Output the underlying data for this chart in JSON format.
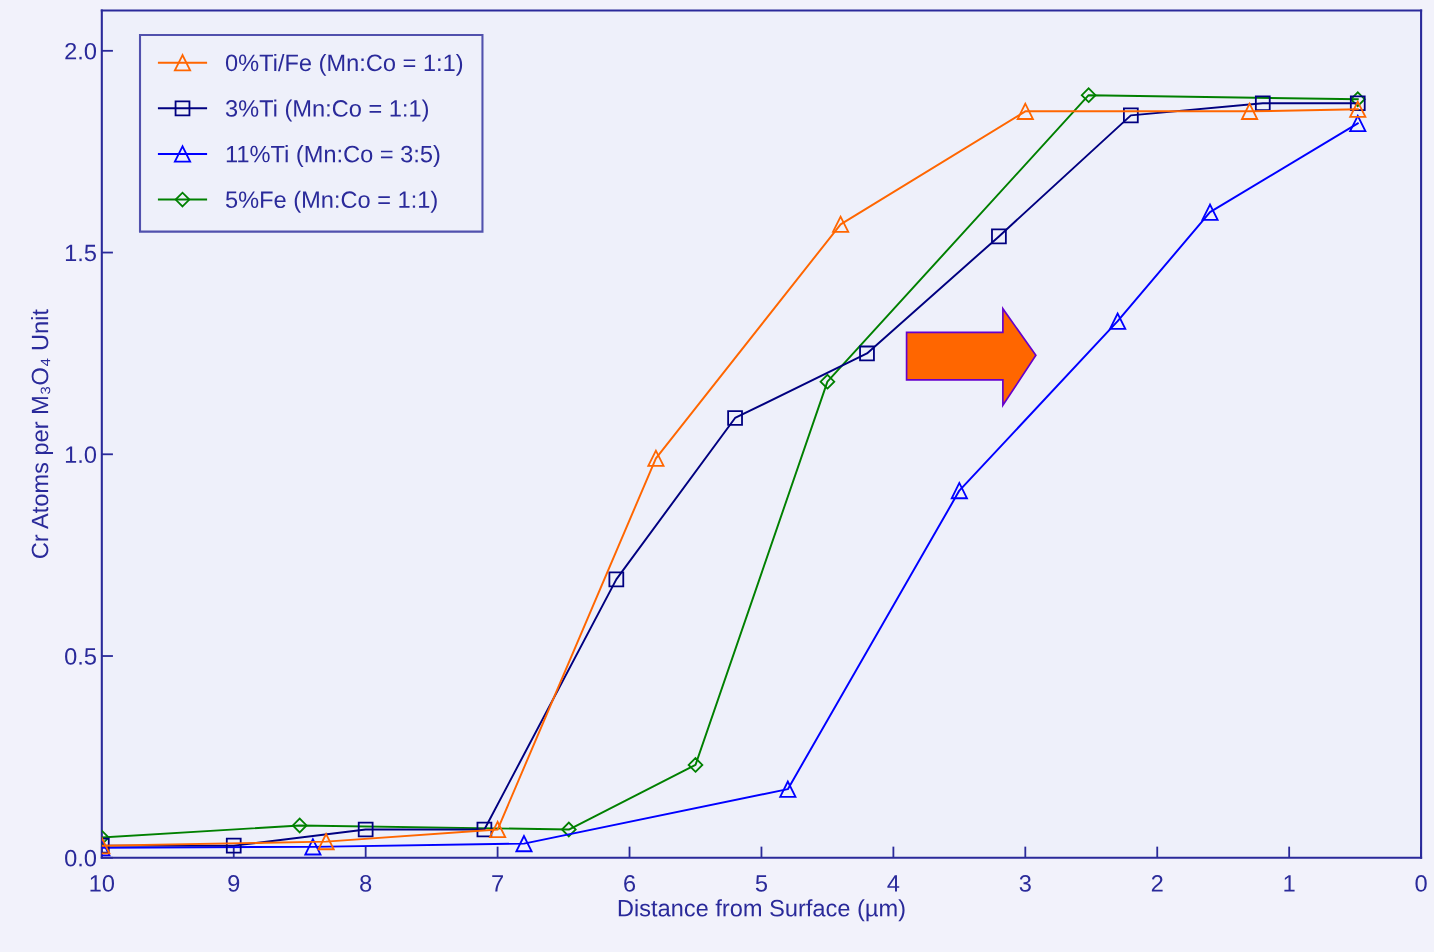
{
  "chart_data": {
    "type": "line",
    "xlabel": "Distance from Surface (µm)",
    "ylabel": "Cr Atoms per M₃O₄ Unit",
    "xlim": [
      10,
      0
    ],
    "xticks": [
      10,
      9,
      8,
      7,
      6,
      5,
      4,
      3,
      2,
      1,
      0
    ],
    "ylim": [
      0,
      2.1
    ],
    "yticks": [
      {
        "value": 0,
        "label": "0.0"
      },
      {
        "value": 0.5,
        "label": "0.5"
      },
      {
        "value": 1,
        "label": "1.0"
      },
      {
        "value": 1.5,
        "label": "1.5"
      },
      {
        "value": 2,
        "label": "2.0"
      }
    ],
    "grid": false,
    "legend": "top left",
    "line_style": "solid",
    "series": [
      {
        "name": "0%Ti/Fe (Mn:Co = 1:1)",
        "color": "#ff6600",
        "marker": "triangle",
        "x": [
          10,
          8.3,
          7.0,
          5.8,
          4.4,
          3.0,
          1.3,
          0.48
        ],
        "values": [
          0.03,
          0.04,
          0.07,
          0.99,
          1.57,
          1.85,
          1.85,
          1.855
        ]
      },
      {
        "name": "3%Ti (Mn:Co = 1:1)",
        "color": "#000080",
        "marker": "square",
        "x": [
          10,
          9,
          8,
          7.1,
          6.1,
          5.2,
          4.2,
          3.2,
          2.2,
          1.2,
          0.48
        ],
        "values": [
          0.03,
          0.03,
          0.07,
          0.07,
          0.69,
          1.09,
          1.25,
          1.54,
          1.84,
          1.87,
          1.87
        ]
      },
      {
        "name": "11%Ti (Mn:Co = 3:5)",
        "color": "#0000ff",
        "marker": "triangle",
        "x": [
          10,
          8.4,
          6.8,
          4.8,
          3.5,
          2.3,
          1.6,
          0.48
        ],
        "values": [
          0.025,
          0.027,
          0.035,
          0.17,
          0.91,
          1.33,
          1.6,
          1.82
        ]
      },
      {
        "name": "5%Fe (Mn:Co = 1:1)",
        "color": "#008000",
        "marker": "diamond",
        "x": [
          10,
          8.5,
          6.46,
          5.5,
          4.5,
          2.52,
          0.48
        ],
        "values": [
          0.05,
          0.08,
          0.07,
          0.23,
          1.18,
          1.89,
          1.88
        ]
      }
    ]
  }
}
